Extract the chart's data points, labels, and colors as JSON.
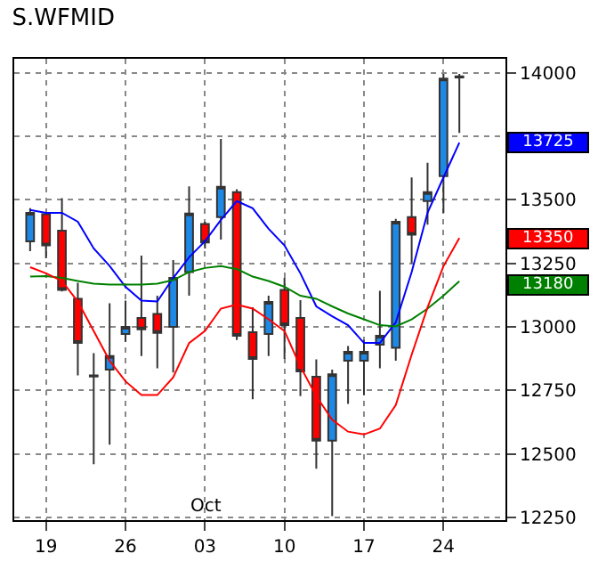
{
  "chart_data": {
    "type": "candlestick",
    "title": "S.WFMID",
    "categories": [
      null,
      "19",
      null,
      null,
      null,
      null,
      "26",
      null,
      null,
      null,
      null,
      "03",
      null,
      null,
      null,
      null,
      "10",
      null,
      null,
      null,
      null,
      "17",
      null,
      null,
      null,
      null,
      "24",
      null
    ],
    "ohlc": [
      [
        13337,
        13467,
        13298,
        13449
      ],
      [
        13444,
        13449,
        13270,
        13321
      ],
      [
        13379,
        13507,
        13140,
        13146
      ],
      [
        13111,
        13174,
        12809,
        12937
      ],
      [
        12809,
        12897,
        12460,
        12805
      ],
      [
        12832,
        13093,
        12537,
        12886
      ],
      [
        12972,
        13104,
        12942,
        13000
      ],
      [
        13035,
        13281,
        12886,
        12991
      ],
      [
        13051,
        13123,
        12837,
        12977
      ],
      [
        13000,
        13263,
        12821,
        13193
      ],
      [
        13216,
        13553,
        13123,
        13446
      ],
      [
        13405,
        13414,
        13309,
        13332
      ],
      [
        13432,
        13740,
        13344,
        13551
      ],
      [
        13530,
        13542,
        12949,
        12965
      ],
      [
        12979,
        13077,
        12716,
        12874
      ],
      [
        12972,
        13123,
        12886,
        13098
      ],
      [
        13146,
        13193,
        12874,
        13007
      ],
      [
        13035,
        13105,
        12728,
        12825
      ],
      [
        12804,
        12872,
        12442,
        12553
      ],
      [
        12553,
        12832,
        12256,
        12814
      ],
      [
        12867,
        12925,
        12697,
        12902
      ],
      [
        12867,
        12949,
        12732,
        12902
      ],
      [
        12930,
        13142,
        12837,
        12965
      ],
      [
        12918,
        13425,
        12867,
        13414
      ],
      [
        13432,
        13588,
        13251,
        13363
      ],
      [
        13495,
        13646,
        13402,
        13530
      ],
      [
        13593,
        13995,
        13449,
        13977
      ],
      [
        13981,
        13995,
        13763,
        13986
      ]
    ],
    "colors": [
      "#1e88e5",
      "#ff0000",
      "#ff0000",
      "#ff0000",
      "#333333",
      "#1e88e5",
      "#1e88e5",
      "#ff0000",
      "#ff0000",
      "#1e88e5",
      "#1e88e5",
      "#ff0000",
      "#1e88e5",
      "#ff0000",
      "#ff0000",
      "#1e88e5",
      "#ff0000",
      "#ff0000",
      "#ff0000",
      "#1e88e5",
      "#1e88e5",
      "#1e88e5",
      "#1e88e5",
      "#1e88e5",
      "#ff0000",
      "#1e88e5",
      "#1e88e5",
      "#333333"
    ],
    "series": [
      {
        "type": "line",
        "color": "#0000ff",
        "values": [
          13460,
          13449,
          13449,
          13414,
          13309,
          13240,
          13158,
          13104,
          13100,
          13193,
          13274,
          13337,
          13421,
          13495,
          13467,
          13386,
          13321,
          13211,
          13081,
          13042,
          13007,
          12937,
          12937,
          13018,
          13216,
          13449,
          13588,
          13725
        ]
      },
      {
        "type": "line",
        "color": "#008000",
        "values": [
          13198,
          13200,
          13193,
          13181,
          13170,
          13167,
          13167,
          13167,
          13170,
          13184,
          13216,
          13232,
          13239,
          13228,
          13198,
          13181,
          13158,
          13123,
          13111,
          13081,
          13053,
          13030,
          13007,
          13002,
          13030,
          13072,
          13123,
          13180
        ]
      },
      {
        "type": "line",
        "color": "#ff0000",
        "values": [
          13235,
          13211,
          13181,
          13100,
          12984,
          12867,
          12786,
          12732,
          12732,
          12802,
          12937,
          12984,
          13072,
          13088,
          13072,
          13030,
          12984,
          12844,
          12728,
          12635,
          12588,
          12577,
          12600,
          12693,
          12891,
          13077,
          13239,
          13350
        ]
      }
    ],
    "ylim": [
      12240,
      14055
    ],
    "yticks": [
      12250,
      12500,
      12750,
      13000,
      13250,
      13500,
      {
        "value": 13750,
        "label": null
      },
      14000
    ],
    "grid": true,
    "annotations": [
      "Oct",
      "13725",
      "13180",
      "13350"
    ]
  }
}
